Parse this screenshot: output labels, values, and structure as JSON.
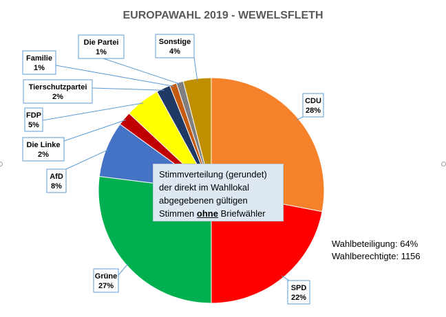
{
  "chart_data": {
    "type": "pie",
    "title": "EUROPAWAHL 2019 - WEWELSFLETH",
    "slices": [
      {
        "name": "CDU",
        "value": 28,
        "label": "28%",
        "color": "#f5812a"
      },
      {
        "name": "SPD",
        "value": 22,
        "label": "22%",
        "color": "#ff0000"
      },
      {
        "name": "Grüne",
        "value": 27,
        "label": "27%",
        "color": "#00b050"
      },
      {
        "name": "AfD",
        "value": 8,
        "label": "8%",
        "color": "#4472c4"
      },
      {
        "name": "Die Linke",
        "value": 2,
        "label": "2%",
        "color": "#c00000"
      },
      {
        "name": "FDP",
        "value": 5,
        "label": "5%",
        "color": "#ffff00"
      },
      {
        "name": "Tierschutzpartei",
        "value": 2,
        "label": "2%",
        "color": "#203864"
      },
      {
        "name": "Familie",
        "value": 1,
        "label": "1%",
        "color": "#c55a11"
      },
      {
        "name": "Die Partei",
        "value": 1,
        "label": "1%",
        "color": "#7f7f7f"
      },
      {
        "name": "Sonstige",
        "value": 4,
        "label": "4%",
        "color": "#bf8f00"
      }
    ]
  },
  "note": {
    "line1": "Stimmverteilung (gerundet)",
    "line2": "der direkt im Wahllokal",
    "line3": "abgegebenen gültigen",
    "line4_pre": "Stimmen",
    "line4_emph": "ohne",
    "line4_post": "Briefwähler"
  },
  "stats": {
    "turnout": "Wahlbeteiligung: 64%",
    "eligible": "Wahlberechtigte: 1156"
  }
}
